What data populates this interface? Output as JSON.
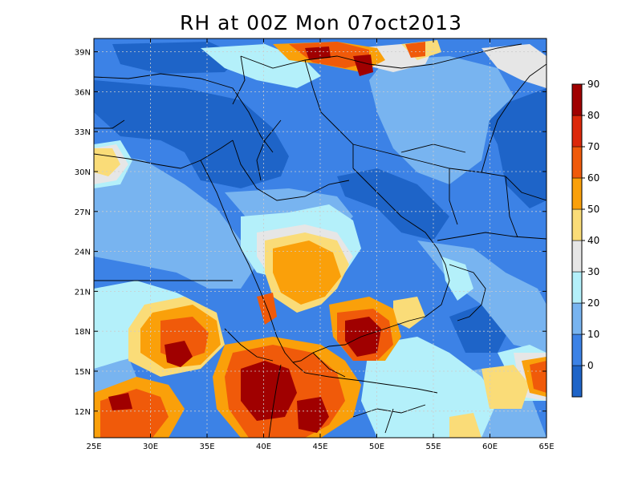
{
  "title": "RH at 00Z Mon 07oct2013",
  "map": {
    "lon_range": [
      25,
      65
    ],
    "lat_range": [
      10,
      40
    ],
    "lon_ticks": [
      {
        "value": 25,
        "label": "25E"
      },
      {
        "value": 30,
        "label": "30E"
      },
      {
        "value": 35,
        "label": "35E"
      },
      {
        "value": 40,
        "label": "40E"
      },
      {
        "value": 45,
        "label": "45E"
      },
      {
        "value": 50,
        "label": "50E"
      },
      {
        "value": 55,
        "label": "55E"
      },
      {
        "value": 60,
        "label": "60E"
      },
      {
        "value": 65,
        "label": "65E"
      }
    ],
    "lat_ticks": [
      {
        "value": 12,
        "label": "12N"
      },
      {
        "value": 15,
        "label": "15N"
      },
      {
        "value": 18,
        "label": "18N"
      },
      {
        "value": 21,
        "label": "21N"
      },
      {
        "value": 24,
        "label": "24N"
      },
      {
        "value": 27,
        "label": "27N"
      },
      {
        "value": 30,
        "label": "30N"
      },
      {
        "value": 33,
        "label": "33N"
      },
      {
        "value": 36,
        "label": "36N"
      },
      {
        "value": 39,
        "label": "39N"
      }
    ],
    "grid": true,
    "background_color": "#3c82e6"
  },
  "colorbar": {
    "colors": [
      "#1e64c8",
      "#3c82e6",
      "#78b4f0",
      "#b4f0fa",
      "#e6e6e6",
      "#fadc78",
      "#faa00a",
      "#f05a0a",
      "#dc280a",
      "#a00000"
    ],
    "labels": [
      "0",
      "10",
      "20",
      "30",
      "40",
      "50",
      "60",
      "70",
      "80",
      "90"
    ]
  },
  "chart_data": {
    "type": "heatmap",
    "title": "RH at 00Z Mon 07oct2013",
    "x_ticks": [
      "25E",
      "30E",
      "35E",
      "40E",
      "45E",
      "50E",
      "55E",
      "60E",
      "65E"
    ],
    "y_ticks": [
      "12N",
      "15N",
      "18N",
      "21N",
      "24N",
      "27N",
      "30N",
      "33N",
      "36N",
      "39N"
    ],
    "x_range": [
      25,
      65
    ],
    "y_range": [
      10,
      40
    ],
    "legend_levels": [
      0,
      10,
      20,
      30,
      40,
      50,
      60,
      70,
      80,
      90
    ],
    "legend_placement": "right"
  }
}
